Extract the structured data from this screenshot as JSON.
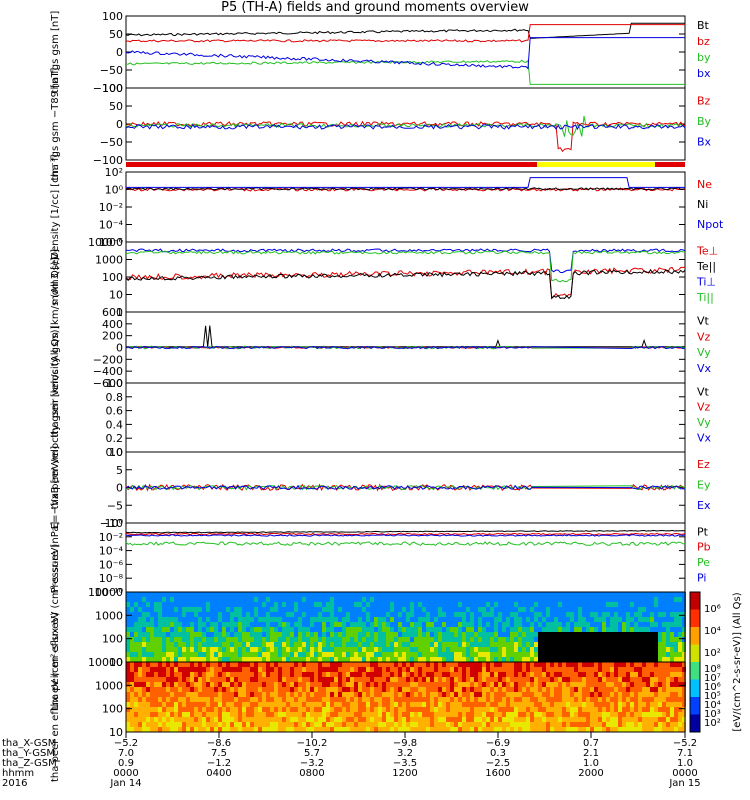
{
  "title": "P5 (TH-A) fields and ground moments overview",
  "chart_data": [
    {
      "type": "line",
      "ylabel": "tha fgs gsm [nT]",
      "yticks": [
        "100",
        "50",
        "0",
        "−50",
        "−100"
      ],
      "series": [
        {
          "name": "Bt",
          "color": "#000000"
        },
        {
          "name": "bz",
          "color": "#e00000"
        },
        {
          "name": "by",
          "color": "#22c022"
        },
        {
          "name": "bx",
          "color": "#0000e0"
        }
      ]
    },
    {
      "type": "line",
      "ylabel": "tha fgs gsm −T89 [nT]",
      "yticks": [
        "100",
        "50",
        "0",
        "−50",
        "−100"
      ],
      "series": [
        {
          "name": "Bz",
          "color": "#e00000"
        },
        {
          "name": "By",
          "color": "#22c022"
        },
        {
          "name": "Bx",
          "color": "#0000e0"
        }
      ]
    },
    {
      "type": "line",
      "ylabel": "Density [1/cc] [cm⁻³]",
      "yticks": [
        "10²",
        "10⁰",
        "10⁻²",
        "10⁻⁴",
        "10⁻⁶"
      ],
      "log": true,
      "series": [
        {
          "name": "Ne",
          "color": "#e00000"
        },
        {
          "name": "Ni",
          "color": "#000000"
        },
        {
          "name": "Npot",
          "color": "#0000e0"
        }
      ]
    },
    {
      "type": "line",
      "ylabel": "mom3 [eV]",
      "yticks": [
        "10000",
        "1000",
        "100",
        "10",
        "1"
      ],
      "log": true,
      "series": [
        {
          "name": "Te⊥",
          "color": "#e00000"
        },
        {
          "name": "Te||",
          "color": "#000000"
        },
        {
          "name": "Ti⊥",
          "color": "#0000e0"
        },
        {
          "name": "Ti||",
          "color": "#22c022"
        }
      ]
    },
    {
      "type": "line",
      "ylabel": "tha peir velocity gsm [km/s (All Qs)]",
      "yticks": [
        "600",
        "400",
        "200",
        "0",
        "−200",
        "−400",
        "−600"
      ],
      "series": [
        {
          "name": "Vt",
          "color": "#000000"
        },
        {
          "name": "Vz",
          "color": "#e00000"
        },
        {
          "name": "Vy",
          "color": "#22c022"
        },
        {
          "name": "Vx",
          "color": "#0000e0"
        }
      ]
    },
    {
      "type": "line",
      "ylabel": "tha peer velocity gsm [km/s (All Qs)]",
      "yticks": [
        "1.0",
        "0.8",
        "0.6",
        "0.4",
        "0.2",
        "0.0"
      ],
      "series": [
        {
          "name": "Vt",
          "color": "#000000"
        },
        {
          "name": "Vz",
          "color": "#e00000"
        },
        {
          "name": "Vy",
          "color": "#22c022"
        },
        {
          "name": "Vx",
          "color": "#0000e0"
        }
      ]
    },
    {
      "type": "line",
      "ylabel": "E=−VxB [mV/m]",
      "yticks": [
        "10",
        "5",
        "0",
        "−5",
        "−10"
      ],
      "series": [
        {
          "name": "Ez",
          "color": "#e00000"
        },
        {
          "name": "Ey",
          "color": "#22c022"
        },
        {
          "name": "Ex",
          "color": "#0000e0"
        }
      ]
    },
    {
      "type": "line",
      "ylabel": "Pressure [nPa]",
      "yticks": [
        "10⁰",
        "10⁻²",
        "10⁻⁴",
        "10⁻⁶",
        "10⁻⁸",
        "10⁻¹⁰"
      ],
      "log": true,
      "series": [
        {
          "name": "Pt",
          "color": "#000000"
        },
        {
          "name": "Pb",
          "color": "#e00000"
        },
        {
          "name": "Pe",
          "color": "#22c022"
        },
        {
          "name": "Pi",
          "color": "#0000e0"
        }
      ]
    },
    {
      "type": "heatmap",
      "ylabel": "tha peir en eflux eV (cm²-s-sr-eV)",
      "yticks": [
        "10000",
        "1000",
        "100",
        "10"
      ]
    },
    {
      "type": "heatmap",
      "ylabel": "tha peer en eflux eV (cm²-s-sr-eV)",
      "yticks": [
        "10000",
        "1000",
        "100",
        "10"
      ]
    }
  ],
  "colorbar": {
    "label": "[eV/(cm^2-s-sr-eV)] (All Qs)",
    "ticks_top": [
      "10⁶",
      "10⁴",
      "10²"
    ],
    "ticks_bottom": [
      "10⁸",
      "10⁷",
      "10⁶",
      "10⁵",
      "10⁴",
      "10³",
      "10²"
    ]
  },
  "xaxis": {
    "rows": [
      {
        "label": "tha_X-GSM",
        "values": [
          "−5.2",
          "−8.6",
          "−10.2",
          "−9.8",
          "−6.9",
          "0.7",
          "−5.2"
        ]
      },
      {
        "label": "tha_Y-GSM",
        "values": [
          "7.0",
          "7.5",
          "5.7",
          "3.2",
          "0.3",
          "2.1",
          "7.1"
        ]
      },
      {
        "label": "tha_Z-GSM",
        "values": [
          "0.9",
          "−1.2",
          "−3.2",
          "−3.5",
          "−2.5",
          "1.0",
          "1.0"
        ]
      },
      {
        "label": "hhmm",
        "values": [
          "0000",
          "0400",
          "0800",
          "1200",
          "1600",
          "2000",
          "0000"
        ]
      },
      {
        "label": "2016",
        "values": [
          "Jan 14",
          "",
          "",
          "",
          "",
          "",
          "Jan 15"
        ]
      }
    ]
  },
  "colors": {
    "red": "#e00000",
    "green": "#22c022",
    "blue": "#0000e0",
    "yellow": "#ffff00"
  }
}
